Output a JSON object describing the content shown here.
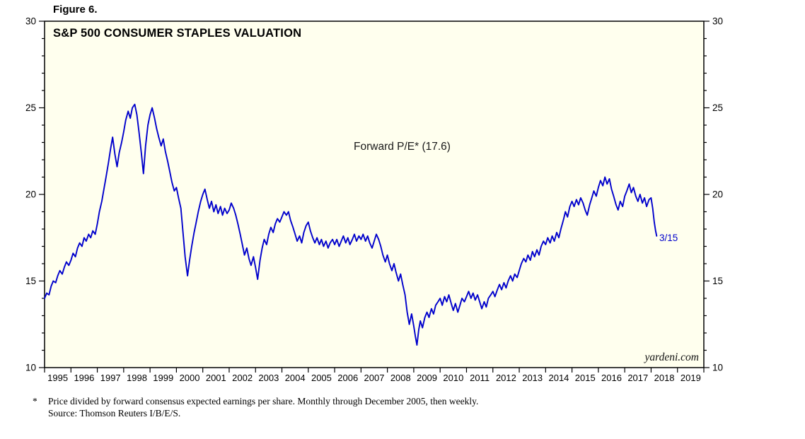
{
  "figure_label": "Figure 6.",
  "chart_data": {
    "type": "line",
    "title": "S&P 500 CONSUMER STAPLES VALUATION",
    "series_annotation": "Forward P/E* (17.6)",
    "series_name": "Forward P/E",
    "last_value": 17.6,
    "last_point_label": "3/15",
    "watermark": "yardeni.com",
    "x_range": [
      1995,
      2020
    ],
    "y_range": [
      10,
      30
    ],
    "y_ticks": [
      10,
      15,
      20,
      25,
      30
    ],
    "y_minor_step": 1,
    "x_tick_labels": [
      "1995",
      "1996",
      "1997",
      "1998",
      "1999",
      "2000",
      "2001",
      "2002",
      "2003",
      "2004",
      "2005",
      "2006",
      "2007",
      "2008",
      "2009",
      "2010",
      "2011",
      "2012",
      "2013",
      "2014",
      "2015",
      "2016",
      "2017",
      "2018",
      "2019"
    ],
    "line_color": "#0000CC",
    "plot_bg": "#FFFFEE",
    "axis_color": "#000000",
    "legend_position": "none",
    "grid": false,
    "points": [
      [
        1995.0,
        14.0
      ],
      [
        1995.08,
        14.3
      ],
      [
        1995.17,
        14.2
      ],
      [
        1995.25,
        14.7
      ],
      [
        1995.33,
        15.0
      ],
      [
        1995.42,
        14.9
      ],
      [
        1995.5,
        15.3
      ],
      [
        1995.58,
        15.6
      ],
      [
        1995.67,
        15.4
      ],
      [
        1995.75,
        15.8
      ],
      [
        1995.83,
        16.1
      ],
      [
        1995.92,
        15.9
      ],
      [
        1996.0,
        16.2
      ],
      [
        1996.08,
        16.6
      ],
      [
        1996.17,
        16.4
      ],
      [
        1996.25,
        16.9
      ],
      [
        1996.33,
        17.2
      ],
      [
        1996.42,
        17.0
      ],
      [
        1996.5,
        17.5
      ],
      [
        1996.58,
        17.3
      ],
      [
        1996.67,
        17.7
      ],
      [
        1996.75,
        17.5
      ],
      [
        1996.83,
        17.9
      ],
      [
        1996.92,
        17.7
      ],
      [
        1997.0,
        18.3
      ],
      [
        1997.08,
        19.0
      ],
      [
        1997.17,
        19.6
      ],
      [
        1997.25,
        20.3
      ],
      [
        1997.33,
        21.0
      ],
      [
        1997.42,
        21.8
      ],
      [
        1997.5,
        22.6
      ],
      [
        1997.58,
        23.3
      ],
      [
        1997.67,
        22.3
      ],
      [
        1997.75,
        21.6
      ],
      [
        1997.83,
        22.4
      ],
      [
        1997.92,
        23.0
      ],
      [
        1998.0,
        23.6
      ],
      [
        1998.08,
        24.3
      ],
      [
        1998.17,
        24.8
      ],
      [
        1998.25,
        24.4
      ],
      [
        1998.33,
        25.0
      ],
      [
        1998.42,
        25.2
      ],
      [
        1998.5,
        24.6
      ],
      [
        1998.58,
        23.6
      ],
      [
        1998.67,
        22.4
      ],
      [
        1998.75,
        21.2
      ],
      [
        1998.83,
        22.8
      ],
      [
        1998.92,
        24.0
      ],
      [
        1999.0,
        24.6
      ],
      [
        1999.08,
        25.0
      ],
      [
        1999.17,
        24.4
      ],
      [
        1999.25,
        23.8
      ],
      [
        1999.33,
        23.3
      ],
      [
        1999.42,
        22.8
      ],
      [
        1999.5,
        23.2
      ],
      [
        1999.58,
        22.5
      ],
      [
        1999.67,
        21.9
      ],
      [
        1999.75,
        21.3
      ],
      [
        1999.83,
        20.7
      ],
      [
        1999.92,
        20.2
      ],
      [
        2000.0,
        20.4
      ],
      [
        2000.08,
        19.8
      ],
      [
        2000.17,
        19.2
      ],
      [
        2000.25,
        17.8
      ],
      [
        2000.33,
        16.4
      ],
      [
        2000.42,
        15.3
      ],
      [
        2000.5,
        16.2
      ],
      [
        2000.58,
        17.0
      ],
      [
        2000.67,
        17.8
      ],
      [
        2000.75,
        18.4
      ],
      [
        2000.83,
        19.0
      ],
      [
        2000.92,
        19.6
      ],
      [
        2001.0,
        20.0
      ],
      [
        2001.08,
        20.3
      ],
      [
        2001.17,
        19.7
      ],
      [
        2001.25,
        19.2
      ],
      [
        2001.33,
        19.6
      ],
      [
        2001.42,
        19.0
      ],
      [
        2001.5,
        19.4
      ],
      [
        2001.58,
        18.9
      ],
      [
        2001.67,
        19.3
      ],
      [
        2001.75,
        18.8
      ],
      [
        2001.83,
        19.2
      ],
      [
        2001.92,
        18.9
      ],
      [
        2002.0,
        19.1
      ],
      [
        2002.08,
        19.5
      ],
      [
        2002.17,
        19.2
      ],
      [
        2002.25,
        18.8
      ],
      [
        2002.33,
        18.3
      ],
      [
        2002.42,
        17.7
      ],
      [
        2002.5,
        17.1
      ],
      [
        2002.58,
        16.5
      ],
      [
        2002.67,
        16.9
      ],
      [
        2002.75,
        16.3
      ],
      [
        2002.83,
        15.9
      ],
      [
        2002.92,
        16.4
      ],
      [
        2003.0,
        15.8
      ],
      [
        2003.08,
        15.1
      ],
      [
        2003.17,
        16.2
      ],
      [
        2003.25,
        16.9
      ],
      [
        2003.33,
        17.4
      ],
      [
        2003.42,
        17.1
      ],
      [
        2003.5,
        17.7
      ],
      [
        2003.58,
        18.1
      ],
      [
        2003.67,
        17.8
      ],
      [
        2003.75,
        18.3
      ],
      [
        2003.83,
        18.6
      ],
      [
        2003.92,
        18.4
      ],
      [
        2004.0,
        18.7
      ],
      [
        2004.08,
        19.0
      ],
      [
        2004.17,
        18.8
      ],
      [
        2004.25,
        19.0
      ],
      [
        2004.33,
        18.5
      ],
      [
        2004.42,
        18.1
      ],
      [
        2004.5,
        17.7
      ],
      [
        2004.58,
        17.3
      ],
      [
        2004.67,
        17.6
      ],
      [
        2004.75,
        17.2
      ],
      [
        2004.83,
        17.8
      ],
      [
        2004.92,
        18.2
      ],
      [
        2005.0,
        18.4
      ],
      [
        2005.08,
        17.9
      ],
      [
        2005.17,
        17.5
      ],
      [
        2005.25,
        17.2
      ],
      [
        2005.33,
        17.5
      ],
      [
        2005.42,
        17.1
      ],
      [
        2005.5,
        17.4
      ],
      [
        2005.58,
        17.0
      ],
      [
        2005.67,
        17.3
      ],
      [
        2005.75,
        16.9
      ],
      [
        2005.83,
        17.2
      ],
      [
        2005.92,
        17.4
      ],
      [
        2006.0,
        17.1
      ],
      [
        2006.08,
        17.4
      ],
      [
        2006.17,
        17.0
      ],
      [
        2006.25,
        17.3
      ],
      [
        2006.33,
        17.6
      ],
      [
        2006.42,
        17.2
      ],
      [
        2006.5,
        17.5
      ],
      [
        2006.58,
        17.1
      ],
      [
        2006.67,
        17.4
      ],
      [
        2006.75,
        17.7
      ],
      [
        2006.83,
        17.3
      ],
      [
        2006.92,
        17.6
      ],
      [
        2007.0,
        17.4
      ],
      [
        2007.08,
        17.7
      ],
      [
        2007.17,
        17.3
      ],
      [
        2007.25,
        17.6
      ],
      [
        2007.33,
        17.2
      ],
      [
        2007.42,
        16.9
      ],
      [
        2007.5,
        17.3
      ],
      [
        2007.58,
        17.7
      ],
      [
        2007.67,
        17.4
      ],
      [
        2007.75,
        17.0
      ],
      [
        2007.83,
        16.5
      ],
      [
        2007.92,
        16.1
      ],
      [
        2008.0,
        16.5
      ],
      [
        2008.08,
        16.0
      ],
      [
        2008.17,
        15.6
      ],
      [
        2008.25,
        16.0
      ],
      [
        2008.33,
        15.5
      ],
      [
        2008.42,
        15.0
      ],
      [
        2008.5,
        15.4
      ],
      [
        2008.58,
        14.8
      ],
      [
        2008.67,
        14.2
      ],
      [
        2008.75,
        13.2
      ],
      [
        2008.83,
        12.5
      ],
      [
        2008.92,
        13.1
      ],
      [
        2009.0,
        12.4
      ],
      [
        2009.06,
        11.8
      ],
      [
        2009.12,
        11.3
      ],
      [
        2009.19,
        12.2
      ],
      [
        2009.25,
        12.7
      ],
      [
        2009.33,
        12.3
      ],
      [
        2009.42,
        12.9
      ],
      [
        2009.5,
        13.2
      ],
      [
        2009.58,
        12.9
      ],
      [
        2009.67,
        13.4
      ],
      [
        2009.75,
        13.1
      ],
      [
        2009.83,
        13.6
      ],
      [
        2009.92,
        13.8
      ],
      [
        2010.0,
        14.0
      ],
      [
        2010.08,
        13.6
      ],
      [
        2010.17,
        14.1
      ],
      [
        2010.25,
        13.8
      ],
      [
        2010.33,
        14.2
      ],
      [
        2010.42,
        13.7
      ],
      [
        2010.5,
        13.3
      ],
      [
        2010.58,
        13.7
      ],
      [
        2010.67,
        13.2
      ],
      [
        2010.75,
        13.6
      ],
      [
        2010.83,
        14.0
      ],
      [
        2010.92,
        13.8
      ],
      [
        2011.0,
        14.1
      ],
      [
        2011.08,
        14.4
      ],
      [
        2011.17,
        14.0
      ],
      [
        2011.25,
        14.3
      ],
      [
        2011.33,
        13.9
      ],
      [
        2011.42,
        14.2
      ],
      [
        2011.5,
        13.8
      ],
      [
        2011.58,
        13.4
      ],
      [
        2011.67,
        13.8
      ],
      [
        2011.75,
        13.5
      ],
      [
        2011.83,
        14.0
      ],
      [
        2011.92,
        14.2
      ],
      [
        2012.0,
        14.4
      ],
      [
        2012.08,
        14.1
      ],
      [
        2012.17,
        14.5
      ],
      [
        2012.25,
        14.8
      ],
      [
        2012.33,
        14.5
      ],
      [
        2012.42,
        14.9
      ],
      [
        2012.5,
        14.6
      ],
      [
        2012.58,
        15.0
      ],
      [
        2012.67,
        15.3
      ],
      [
        2012.75,
        15.0
      ],
      [
        2012.83,
        15.4
      ],
      [
        2012.92,
        15.2
      ],
      [
        2013.0,
        15.6
      ],
      [
        2013.08,
        16.0
      ],
      [
        2013.17,
        16.3
      ],
      [
        2013.25,
        16.1
      ],
      [
        2013.33,
        16.5
      ],
      [
        2013.42,
        16.2
      ],
      [
        2013.5,
        16.7
      ],
      [
        2013.58,
        16.4
      ],
      [
        2013.67,
        16.8
      ],
      [
        2013.75,
        16.5
      ],
      [
        2013.83,
        17.0
      ],
      [
        2013.92,
        17.3
      ],
      [
        2014.0,
        17.1
      ],
      [
        2014.08,
        17.5
      ],
      [
        2014.17,
        17.2
      ],
      [
        2014.25,
        17.6
      ],
      [
        2014.33,
        17.3
      ],
      [
        2014.42,
        17.8
      ],
      [
        2014.5,
        17.5
      ],
      [
        2014.58,
        18.0
      ],
      [
        2014.67,
        18.5
      ],
      [
        2014.75,
        19.0
      ],
      [
        2014.83,
        18.7
      ],
      [
        2014.92,
        19.3
      ],
      [
        2015.0,
        19.6
      ],
      [
        2015.08,
        19.3
      ],
      [
        2015.17,
        19.7
      ],
      [
        2015.25,
        19.4
      ],
      [
        2015.33,
        19.8
      ],
      [
        2015.42,
        19.5
      ],
      [
        2015.5,
        19.1
      ],
      [
        2015.58,
        18.8
      ],
      [
        2015.67,
        19.4
      ],
      [
        2015.75,
        19.8
      ],
      [
        2015.83,
        20.2
      ],
      [
        2015.92,
        19.9
      ],
      [
        2016.0,
        20.4
      ],
      [
        2016.08,
        20.8
      ],
      [
        2016.17,
        20.5
      ],
      [
        2016.25,
        21.0
      ],
      [
        2016.33,
        20.6
      ],
      [
        2016.42,
        20.9
      ],
      [
        2016.5,
        20.3
      ],
      [
        2016.58,
        19.9
      ],
      [
        2016.67,
        19.4
      ],
      [
        2016.75,
        19.1
      ],
      [
        2016.83,
        19.6
      ],
      [
        2016.92,
        19.3
      ],
      [
        2017.0,
        19.9
      ],
      [
        2017.08,
        20.2
      ],
      [
        2017.17,
        20.6
      ],
      [
        2017.25,
        20.1
      ],
      [
        2017.33,
        20.4
      ],
      [
        2017.42,
        19.9
      ],
      [
        2017.5,
        19.6
      ],
      [
        2017.58,
        20.0
      ],
      [
        2017.67,
        19.5
      ],
      [
        2017.75,
        19.8
      ],
      [
        2017.83,
        19.3
      ],
      [
        2017.92,
        19.7
      ],
      [
        2018.0,
        19.8
      ],
      [
        2018.06,
        19.2
      ],
      [
        2018.12,
        18.4
      ],
      [
        2018.17,
        17.9
      ],
      [
        2018.21,
        17.6
      ]
    ]
  },
  "footnote": {
    "marker": "*",
    "line1": "Price divided by forward consensus expected earnings per share. Monthly through December 2005, then weekly.",
    "line2": "Source: Thomson Reuters I/B/E/S."
  }
}
